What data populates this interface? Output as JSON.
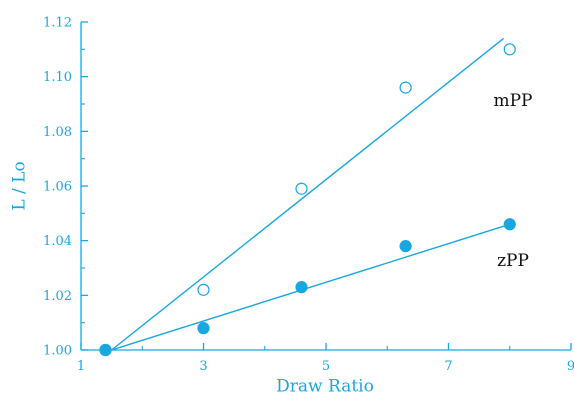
{
  "chart_data": {
    "type": "scatter",
    "title": "",
    "xlabel": "Draw Ratio",
    "ylabel": "L / Lo",
    "xlim": [
      1,
      9
    ],
    "ylim": [
      1.0,
      1.12
    ],
    "x_ticks": [
      "1",
      "3",
      "5",
      "7",
      "9"
    ],
    "y_ticks": [
      "1.00",
      "1.02",
      "1.04",
      "1.06",
      "1.08",
      "1.10",
      "1.12"
    ],
    "grid": false,
    "axis_color": "#1aa7e0",
    "series": [
      {
        "name": "mPP",
        "marker": "open-circle",
        "points": [
          {
            "x": 1.4,
            "y": 1.0
          },
          {
            "x": 3.0,
            "y": 1.022
          },
          {
            "x": 4.6,
            "y": 1.059
          },
          {
            "x": 6.3,
            "y": 1.096
          },
          {
            "x": 8.0,
            "y": 1.11
          }
        ],
        "fit_line": [
          {
            "x": 1.5,
            "y": 1.0
          },
          {
            "x": 7.9,
            "y": 1.114
          }
        ]
      },
      {
        "name": "zPP",
        "marker": "filled-circle",
        "points": [
          {
            "x": 1.4,
            "y": 1.0
          },
          {
            "x": 3.0,
            "y": 1.008
          },
          {
            "x": 4.6,
            "y": 1.023
          },
          {
            "x": 6.3,
            "y": 1.038
          },
          {
            "x": 8.0,
            "y": 1.046
          }
        ],
        "fit_line": [
          {
            "x": 1.5,
            "y": 1.0
          },
          {
            "x": 8.0,
            "y": 1.046
          }
        ]
      }
    ]
  }
}
